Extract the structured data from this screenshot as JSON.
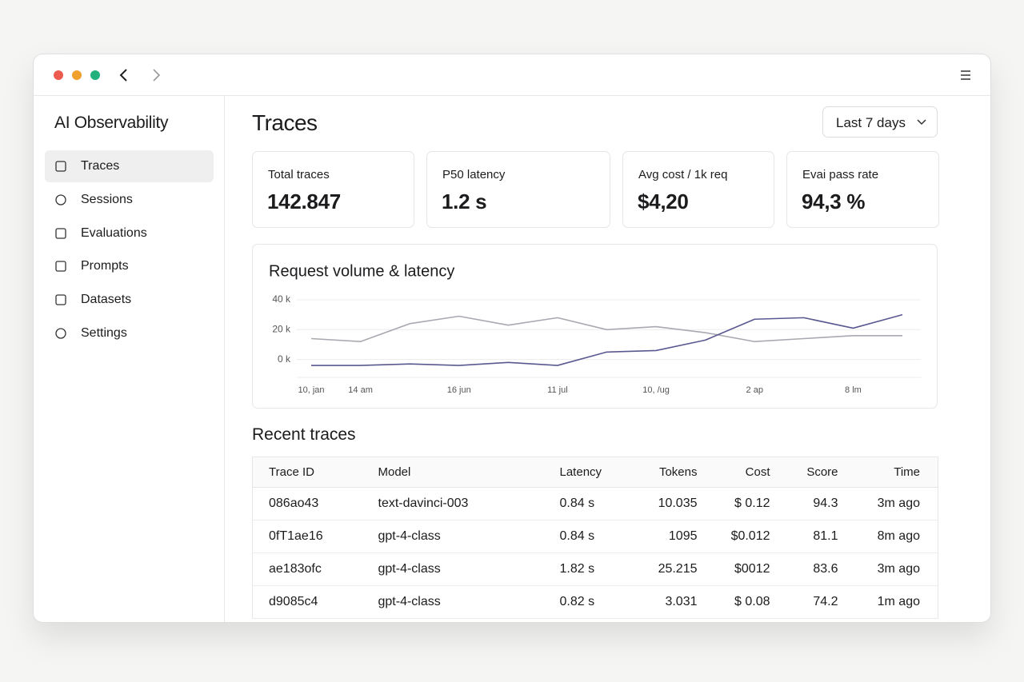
{
  "sidebar": {
    "title": "AI Observability",
    "nav": [
      "Traces",
      "Sessions",
      "Evaluations",
      "Prompts",
      "Datasets",
      "Settings"
    ]
  },
  "header": {
    "title": "Traces",
    "range": "Last 7 days"
  },
  "stats": [
    {
      "label": "Total traces",
      "value": "142.847"
    },
    {
      "label": "P50 latency",
      "value": "1.2 s"
    },
    {
      "label": "Avg cost / 1k req",
      "value": "$4,20"
    },
    {
      "label": "Evai pass rate",
      "value": "94,3 %"
    }
  ],
  "chart": {
    "type": "line",
    "title": "Request volume & latency",
    "x": [
      0,
      1,
      2,
      3,
      4,
      5,
      6,
      7,
      8,
      9,
      10,
      11,
      12
    ],
    "xlim": [
      0,
      12
    ],
    "xticks": [
      {
        "value": 0,
        "label": "10, jan"
      },
      {
        "value": 1,
        "label": "14 am"
      },
      {
        "value": 3,
        "label": "16 jun"
      },
      {
        "value": 5,
        "label": "11 jul"
      },
      {
        "value": 7,
        "label": "10, /ug"
      },
      {
        "value": 9,
        "label": "2 ap"
      },
      {
        "value": 11,
        "label": "8 lm"
      }
    ],
    "ylim": [
      -12,
      40
    ],
    "yticks": [
      {
        "value": 40,
        "label": "40 k"
      },
      {
        "value": 20,
        "label": "20 k"
      },
      {
        "value": 0,
        "label": "0 k"
      }
    ],
    "grid": true,
    "series": [
      {
        "color": "#a9a9b1",
        "values": [
          14,
          12,
          24,
          29,
          23,
          28,
          20,
          22,
          18,
          12,
          14,
          16,
          16
        ]
      },
      {
        "color": "#5a5890",
        "values": [
          -4,
          -4,
          -3,
          -4,
          -2,
          -4,
          5,
          6,
          13,
          27,
          28,
          21,
          30
        ]
      }
    ]
  },
  "recent": {
    "title": "Recent traces",
    "columns": [
      "Trace ID",
      "Model",
      "Latency",
      "Tokens",
      "Cost",
      "Score",
      "Time"
    ],
    "rows": [
      [
        "086ao43",
        "text-davinci-003",
        "0.84 s",
        "10.035",
        "$ 0.12",
        "94.3",
        "3m ago"
      ],
      [
        "0fT1ae16",
        "gpt-4-class",
        "0.84 s",
        "1095",
        "$0.012",
        "81.1",
        "8m ago"
      ],
      [
        "ae183ofc",
        "gpt-4-class",
        "1.82 s",
        "25.215",
        "$0012",
        "83.6",
        "3m ago"
      ],
      [
        "d9085c4",
        "gpt-4-class",
        "0.82 s",
        "3.031",
        "$ 0.08",
        "74.2",
        "1m ago"
      ]
    ]
  }
}
